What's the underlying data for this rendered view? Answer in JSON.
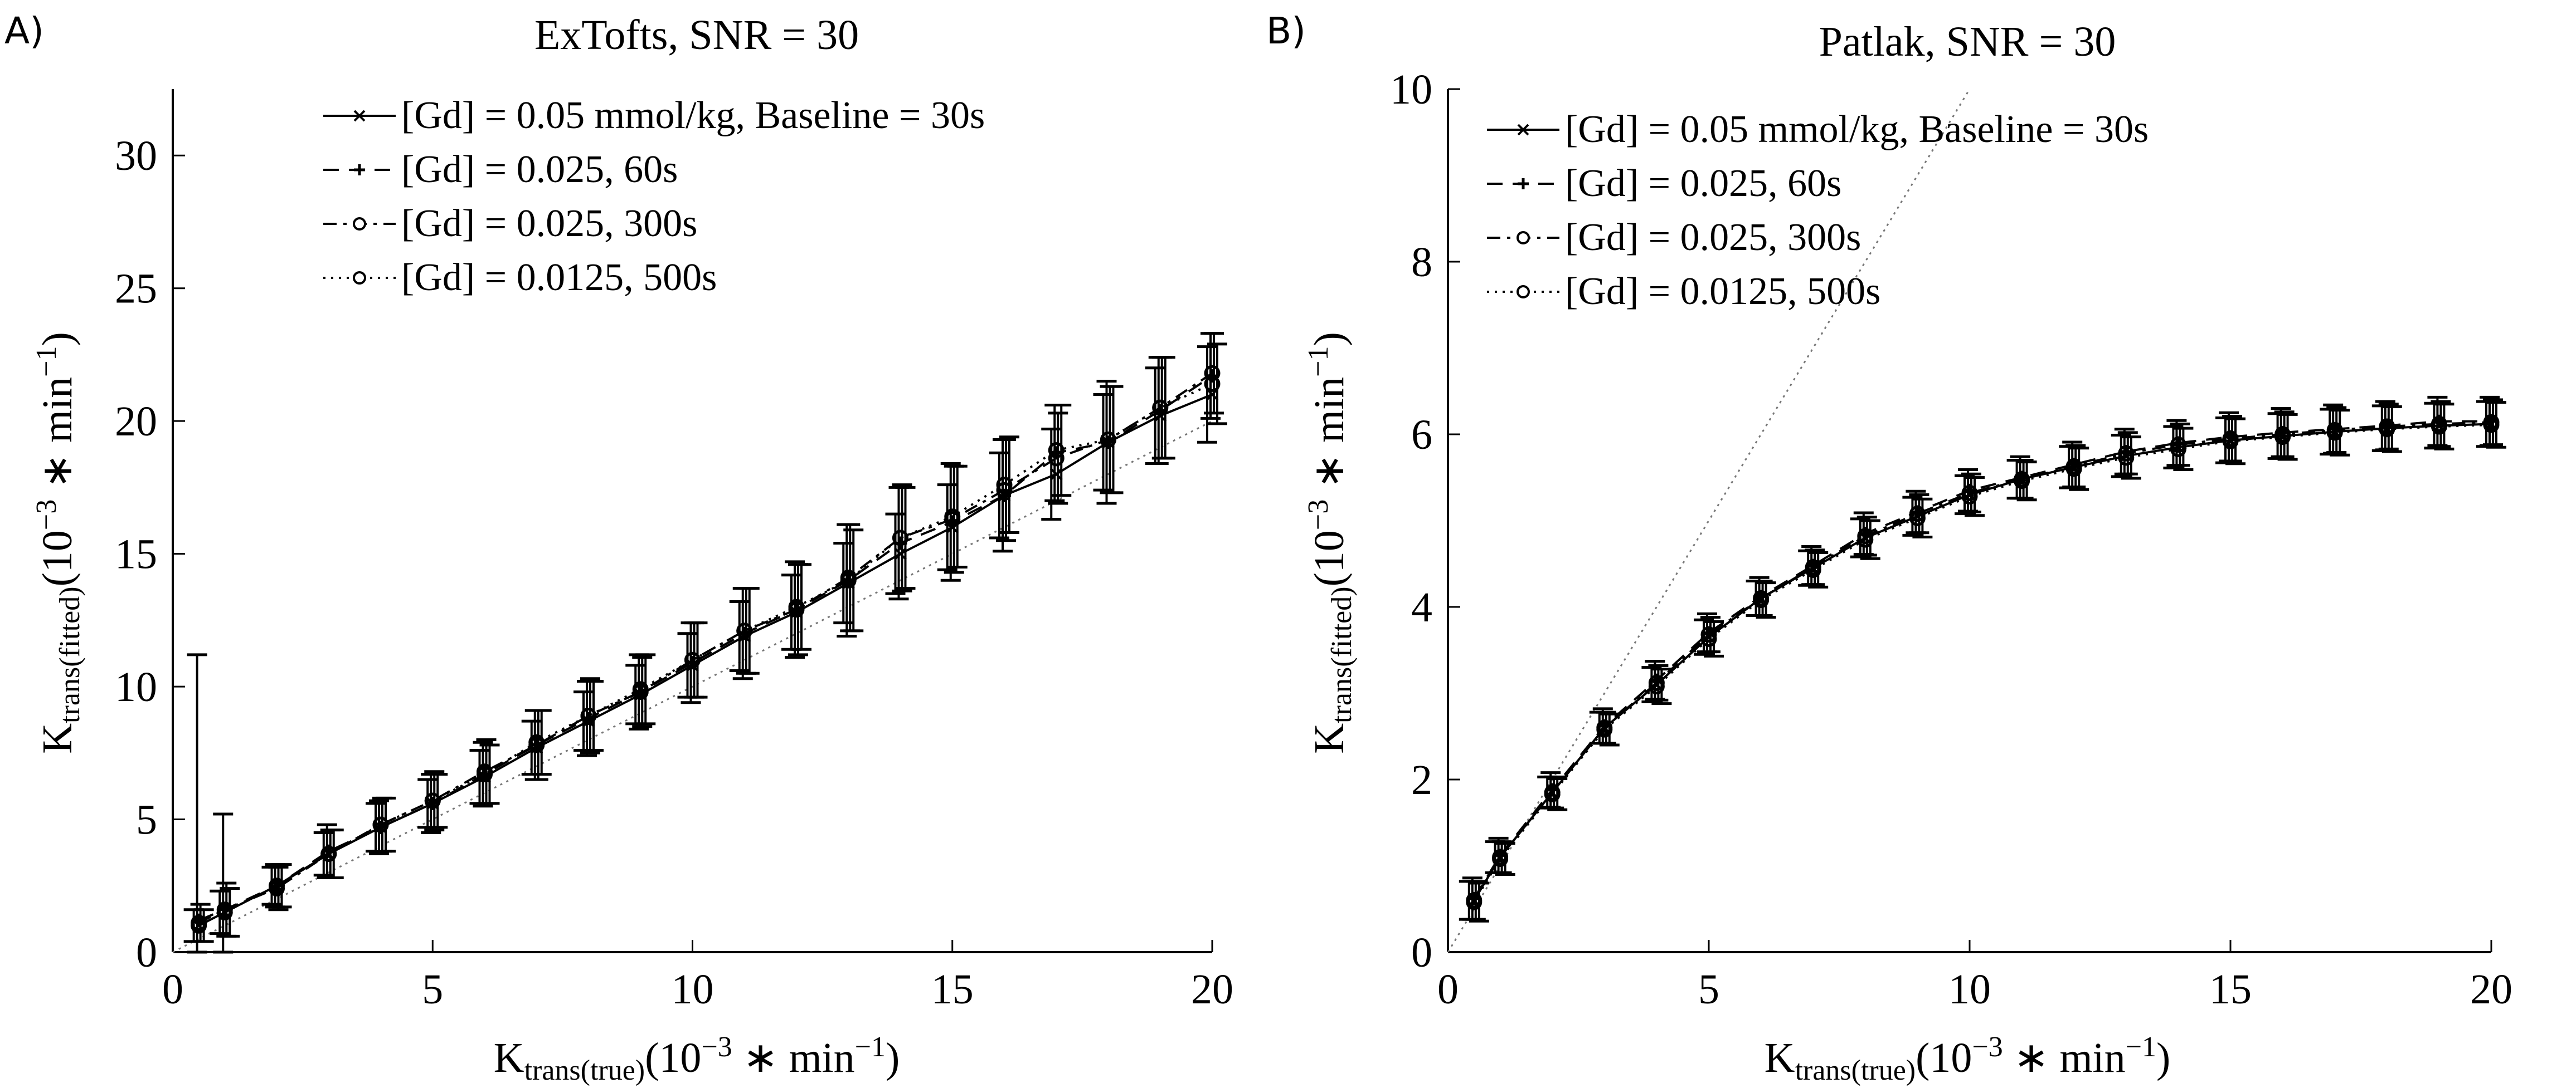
{
  "panels": [
    {
      "letter": "A)",
      "chart_data": {
        "type": "line",
        "title": "ExTofts, SNR = 30",
        "xlabel": {
          "main": "K",
          "sub": "trans(true)",
          "unit_open": "(10",
          "unit_sup": "−3",
          "unit_mid": " ∗ min",
          "unit_sup2": "−1",
          "unit_close": ")"
        },
        "ylabel": {
          "main": "K",
          "sub": "trans(fitted)",
          "unit_open": "(10",
          "unit_sup": "−3",
          "unit_mid": " ∗ min",
          "unit_sup2": "−1",
          "unit_close": ")"
        },
        "xlim": [
          0,
          20
        ],
        "ylim": [
          0,
          32.5
        ],
        "xticks": [
          "0",
          "5",
          "10",
          "15",
          "20"
        ],
        "yticks": [
          "0",
          "5",
          "10",
          "15",
          "20",
          "25",
          "30"
        ],
        "identity_line": true,
        "x": [
          0.5,
          1,
          2,
          3,
          4,
          5,
          6,
          7,
          8,
          9,
          10,
          11,
          12,
          13,
          14,
          15,
          16,
          17,
          18,
          19,
          20
        ],
        "series": [
          {
            "name": "[Gd] = 0.05 mmol/kg, Baseline = 30s",
            "style": "solid",
            "marker": "x",
            "values": [
              1.0,
              1.5,
              2.5,
              3.7,
              4.7,
              5.6,
              6.6,
              7.7,
              8.7,
              9.7,
              10.8,
              11.9,
              12.8,
              13.9,
              15.0,
              16.0,
              17.2,
              18.0,
              19.2,
              20.2,
              21.0
            ],
            "err": [
              0.6,
              0.8,
              0.7,
              0.8,
              0.9,
              0.9,
              1.0,
              1.0,
              1.1,
              1.1,
              1.2,
              1.3,
              1.4,
              1.5,
              1.5,
              1.6,
              1.6,
              1.7,
              1.8,
              1.8,
              1.8
            ]
          },
          {
            "name": "[Gd] = 0.025, 60s",
            "style": "dashed",
            "marker": "+",
            "values": [
              1.2,
              1.6,
              2.5,
              3.8,
              4.7,
              5.6,
              6.7,
              7.8,
              8.8,
              9.8,
              10.9,
              12.0,
              12.9,
              14.0,
              15.4,
              16.2,
              17.2,
              18.8,
              19.2,
              20.4,
              21.7
            ],
            "err": [
              10.0,
              3.6,
              0.8,
              1.0,
              1.0,
              1.1,
              1.2,
              1.3,
              1.4,
              1.4,
              1.5,
              1.7,
              1.8,
              2.1,
              2.1,
              2.2,
              2.1,
              1.8,
              2.3,
              2.0,
              1.6
            ]
          },
          {
            "name": "[Gd] = 0.025, 300s",
            "style": "dashdot",
            "marker": "o",
            "values": [
              1.1,
              1.6,
              2.4,
              3.7,
              4.8,
              5.7,
              6.8,
              7.8,
              8.9,
              9.8,
              11.0,
              12.1,
              12.9,
              14.1,
              15.6,
              16.3,
              17.4,
              18.6,
              19.3,
              20.5,
              21.8
            ],
            "err": [
              0.7,
              1.0,
              0.8,
              0.9,
              1.0,
              1.1,
              1.2,
              1.3,
              1.4,
              1.3,
              1.4,
              1.6,
              1.7,
              2.0,
              2.0,
              2.0,
              1.9,
              1.7,
              2.0,
              1.9,
              1.5
            ]
          },
          {
            "name": "[Gd] = 0.0125, 500s",
            "style": "dotted",
            "marker": "o",
            "values": [
              1.0,
              1.5,
              2.5,
              3.7,
              4.8,
              5.7,
              6.7,
              7.9,
              8.9,
              9.9,
              11.0,
              12.1,
              13.0,
              14.0,
              15.6,
              16.4,
              17.6,
              18.9,
              19.3,
              20.5,
              21.4
            ],
            "err": [
              0.6,
              0.9,
              0.8,
              0.9,
              1.0,
              1.0,
              1.1,
              1.2,
              1.3,
              1.3,
              1.4,
              1.6,
              1.6,
              1.9,
              1.9,
              1.9,
              1.8,
              1.7,
              2.0,
              1.9,
              1.5
            ]
          }
        ]
      }
    },
    {
      "letter": "B)",
      "chart_data": {
        "type": "line",
        "title": "Patlak, SNR = 30",
        "xlabel": {
          "main": "K",
          "sub": "trans(true)",
          "unit_open": "(10",
          "unit_sup": "−3",
          "unit_mid": " ∗ min",
          "unit_sup2": "−1",
          "unit_close": ")"
        },
        "ylabel": {
          "main": "K",
          "sub": "trans(fitted)",
          "unit_open": "(10",
          "unit_sup": "−3",
          "unit_mid": " ∗ min",
          "unit_sup2": "−1",
          "unit_close": ")"
        },
        "xlim": [
          0,
          20
        ],
        "ylim": [
          0,
          10
        ],
        "xticks": [
          "0",
          "5",
          "10",
          "15",
          "20"
        ],
        "yticks": [
          "0",
          "2",
          "4",
          "6",
          "8",
          "10"
        ],
        "identity_line": true,
        "x": [
          0.5,
          1,
          2,
          3,
          4,
          5,
          6,
          7,
          8,
          9,
          10,
          11,
          12,
          13,
          14,
          15,
          16,
          17,
          18,
          19,
          20
        ],
        "series": [
          {
            "name": "[Gd] = 0.05 mmol/kg, Baseline = 30s",
            "style": "solid",
            "marker": "x",
            "values": [
              0.6,
              1.1,
              1.85,
              2.6,
              3.1,
              3.65,
              4.1,
              4.45,
              4.8,
              5.05,
              5.3,
              5.48,
              5.62,
              5.75,
              5.85,
              5.93,
              5.98,
              6.03,
              6.07,
              6.1,
              6.12
            ],
            "err": [
              0.22,
              0.18,
              0.18,
              0.18,
              0.2,
              0.2,
              0.2,
              0.2,
              0.22,
              0.22,
              0.22,
              0.22,
              0.24,
              0.24,
              0.24,
              0.26,
              0.26,
              0.26,
              0.26,
              0.26,
              0.26
            ]
          },
          {
            "name": "[Gd] = 0.025, 60s",
            "style": "dashed",
            "marker": "+",
            "values": [
              0.62,
              1.12,
              1.88,
              2.62,
              3.15,
              3.7,
              4.12,
              4.48,
              4.85,
              5.1,
              5.35,
              5.5,
              5.65,
              5.8,
              5.9,
              5.97,
              6.02,
              6.06,
              6.1,
              6.15,
              6.15
            ],
            "err": [
              0.24,
              0.2,
              0.2,
              0.2,
              0.22,
              0.22,
              0.22,
              0.22,
              0.24,
              0.24,
              0.24,
              0.24,
              0.26,
              0.26,
              0.26,
              0.28,
              0.28,
              0.28,
              0.28,
              0.28,
              0.28
            ]
          },
          {
            "name": "[Gd] = 0.025, 300s",
            "style": "dashdot",
            "marker": "o",
            "values": [
              0.6,
              1.1,
              1.85,
              2.6,
              3.12,
              3.68,
              4.1,
              4.46,
              4.82,
              5.08,
              5.32,
              5.48,
              5.63,
              5.78,
              5.88,
              5.95,
              6.0,
              6.05,
              6.09,
              6.12,
              6.14
            ],
            "err": [
              0.22,
              0.18,
              0.18,
              0.18,
              0.2,
              0.2,
              0.2,
              0.2,
              0.22,
              0.22,
              0.22,
              0.22,
              0.24,
              0.24,
              0.24,
              0.26,
              0.26,
              0.26,
              0.26,
              0.26,
              0.26
            ]
          },
          {
            "name": "[Gd] = 0.0125, 500s",
            "style": "dotted",
            "marker": "o",
            "values": [
              0.58,
              1.08,
              1.83,
              2.58,
              3.08,
              3.63,
              4.08,
              4.43,
              4.78,
              5.03,
              5.28,
              5.46,
              5.6,
              5.73,
              5.83,
              5.92,
              5.97,
              6.02,
              6.06,
              6.09,
              6.11
            ],
            "err": [
              0.22,
              0.18,
              0.18,
              0.18,
              0.2,
              0.2,
              0.2,
              0.2,
              0.22,
              0.22,
              0.22,
              0.22,
              0.24,
              0.24,
              0.24,
              0.26,
              0.26,
              0.26,
              0.26,
              0.26,
              0.26
            ]
          }
        ]
      }
    }
  ]
}
